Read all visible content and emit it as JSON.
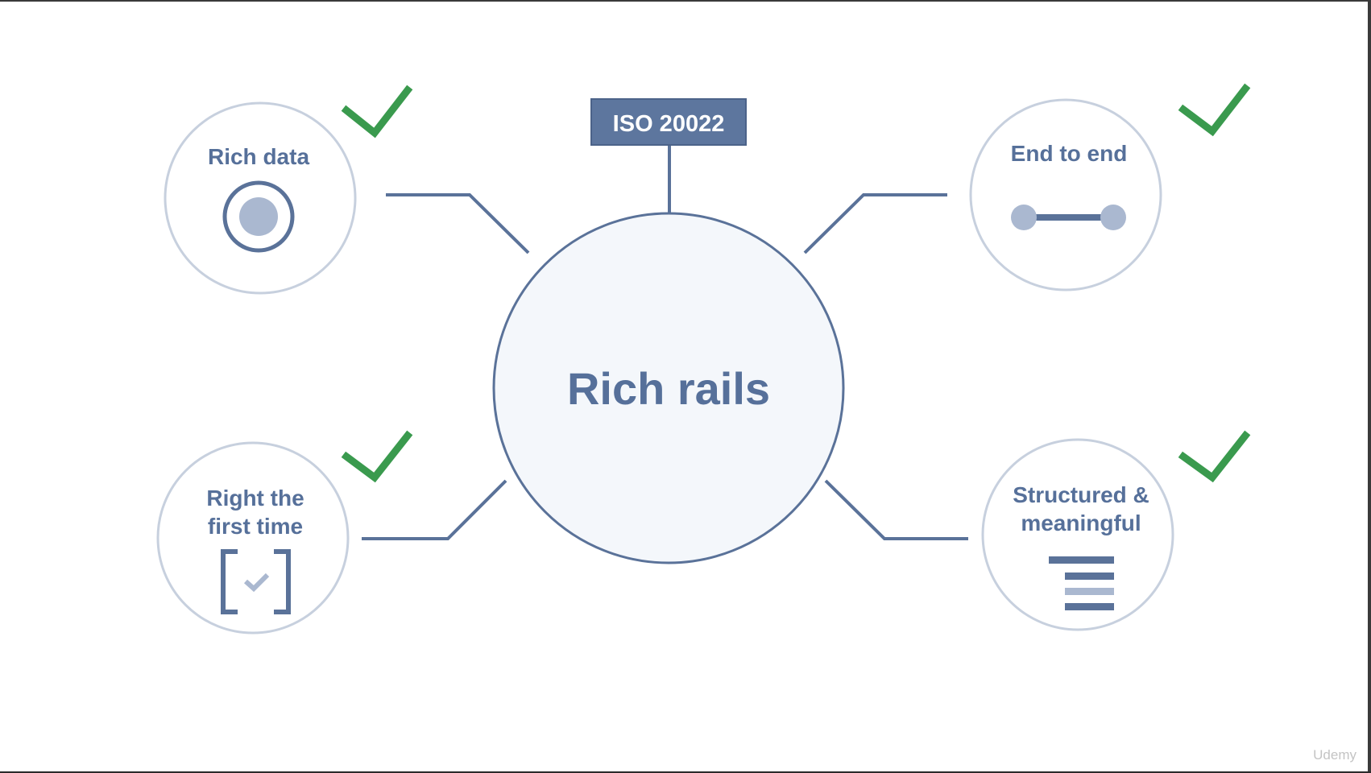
{
  "center": {
    "label": "Rich rails"
  },
  "tag": {
    "label": "ISO 20022"
  },
  "features": [
    {
      "label_lines": [
        "Rich data"
      ],
      "icon": "target-icon",
      "checked": true
    },
    {
      "label_lines": [
        "End to end"
      ],
      "icon": "connector-icon",
      "checked": true
    },
    {
      "label_lines": [
        "Right the",
        "first time"
      ],
      "icon": "checkbox-bracket-icon",
      "checked": true
    },
    {
      "label_lines": [
        "Structured &",
        "meaningful"
      ],
      "icon": "text-lines-icon",
      "checked": true
    }
  ],
  "watermark": "Udemy",
  "colors": {
    "line": "#5a7299",
    "text": "#56709a",
    "ring": "#c7d0de",
    "center_fill": "#f4f7fb",
    "check": "#3a9a4e",
    "icon_light": "#aab8d0",
    "tag_fill": "#5d769e"
  }
}
